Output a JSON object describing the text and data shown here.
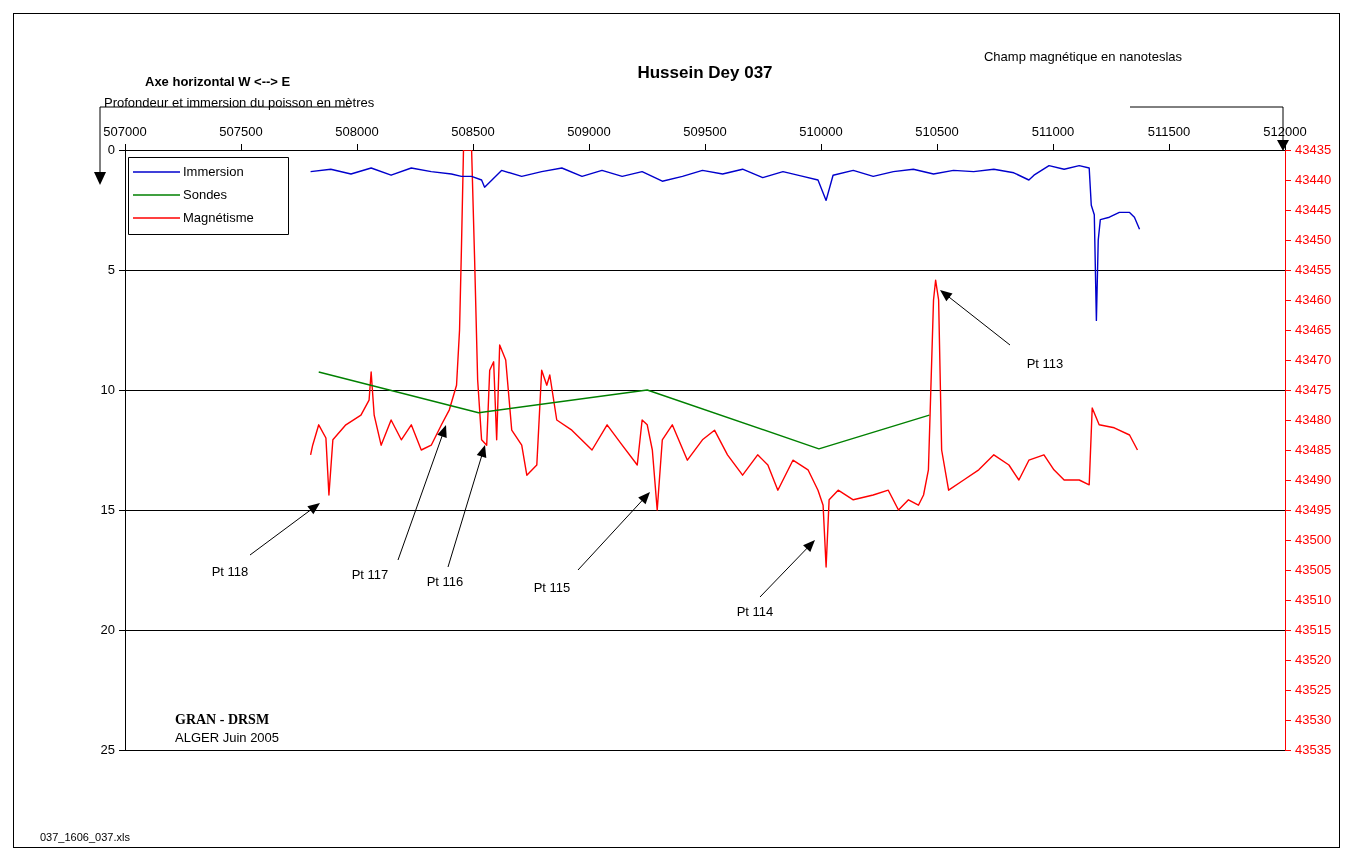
{
  "chart_data": {
    "type": "line",
    "title": "Hussein Dey 037",
    "xlabel": "Axe horizontal W <--> E",
    "ylabel": "Profondeur et immersion du poisson en mètres",
    "y2label": "Champ magnétique en nanoteslas",
    "xlim": [
      507000,
      512000
    ],
    "xticks": [
      507000,
      507500,
      508000,
      508500,
      509000,
      509500,
      510000,
      510500,
      511000,
      511500,
      512000
    ],
    "ylim": [
      25,
      0
    ],
    "yticks": [
      0,
      5,
      10,
      15,
      20,
      25
    ],
    "y2lim": [
      43535,
      43435
    ],
    "y2ticks": [
      43435,
      43440,
      43445,
      43450,
      43455,
      43460,
      43465,
      43470,
      43475,
      43480,
      43485,
      43490,
      43495,
      43500,
      43505,
      43510,
      43515,
      43520,
      43525,
      43530,
      43535
    ],
    "grid": "y",
    "legend": "top left",
    "series": [
      {
        "name": "Immersion",
        "color": "#0000cc",
        "x": [
          507800,
          507887,
          507974,
          508061,
          508147,
          508234,
          508320,
          508407,
          508450,
          508494,
          508537,
          508550,
          508623,
          508710,
          508796,
          508883,
          508970,
          509056,
          509143,
          509229,
          509316,
          509403,
          509489,
          509576,
          509662,
          509749,
          509836,
          509922,
          509987,
          510022,
          510052,
          510139,
          510225,
          510312,
          510398,
          510485,
          510571,
          510658,
          510745,
          510831,
          510896,
          510918,
          510983,
          511048,
          511113,
          511156,
          511165,
          511178,
          511187,
          511195,
          511204,
          511243,
          511286,
          511330,
          511351,
          511373
        ],
        "values": [
          0.9,
          0.8,
          1.0,
          0.75,
          1.05,
          0.75,
          0.9,
          1.0,
          1.1,
          1.1,
          1.25,
          1.55,
          0.85,
          1.1,
          0.9,
          0.75,
          1.1,
          0.85,
          1.1,
          0.9,
          1.3,
          1.1,
          0.85,
          1.0,
          0.8,
          1.15,
          0.9,
          1.1,
          1.25,
          2.1,
          1.05,
          0.85,
          1.1,
          0.9,
          0.8,
          1.0,
          0.85,
          0.9,
          0.8,
          0.95,
          1.25,
          1.05,
          0.65,
          0.8,
          0.65,
          0.75,
          2.3,
          2.7,
          7.1,
          3.75,
          2.9,
          2.8,
          2.6,
          2.6,
          2.8,
          3.3
        ]
      },
      {
        "name": "Sondes",
        "color": "#008000",
        "x": [
          507835,
          508524,
          509251,
          509991,
          510467
        ],
        "values": [
          9.25,
          10.95,
          10.0,
          12.45,
          11.05
        ]
      },
      {
        "name": "Magnétisme",
        "color": "#ff0000",
        "axis": "y2",
        "x": [
          507800,
          507809,
          507835,
          507866,
          507879,
          507896,
          507952,
          508017,
          508052,
          508061,
          508074,
          508104,
          508147,
          508191,
          508234,
          508277,
          508320,
          508364,
          508398,
          508429,
          508442,
          508450,
          508459,
          508494,
          508507,
          508520,
          508537,
          508559,
          508572,
          508589,
          508602,
          508615,
          508641,
          508667,
          508710,
          508732,
          508775,
          508796,
          508818,
          508831,
          508861,
          508926,
          509013,
          509078,
          509143,
          509208,
          509229,
          509251,
          509273,
          509294,
          509316,
          509359,
          509424,
          509489,
          509541,
          509597,
          509662,
          509727,
          509771,
          509814,
          509879,
          509944,
          509987,
          510009,
          510022,
          510035,
          510074,
          510139,
          510225,
          510290,
          510334,
          510377,
          510420,
          510442,
          510463,
          510485,
          510494,
          510507,
          510520,
          510550,
          510615,
          510680,
          510745,
          510810,
          510853,
          510896,
          510961,
          511004,
          511048,
          511113,
          511156,
          511169,
          511199,
          511264,
          511330,
          511364
        ],
        "values": [
          43485.8,
          43484.2,
          43480.8,
          43483,
          43492.5,
          43483.3,
          43480.8,
          43479.2,
          43476.7,
          43472,
          43479.2,
          43484.2,
          43480,
          43483.3,
          43480.8,
          43485,
          43484.2,
          43480.8,
          43478.3,
          43474.2,
          43465,
          43451.7,
          43435,
          43435,
          43453.3,
          43473.3,
          43483.3,
          43484.2,
          43471.7,
          43470.3,
          43483.3,
          43467.5,
          43470,
          43481.7,
          43484.2,
          43489.2,
          43487.5,
          43471.7,
          43474.2,
          43472.5,
          43480,
          43481.7,
          43485,
          43480.8,
          43484.2,
          43487.5,
          43480,
          43480.8,
          43485,
          43495,
          43483.3,
          43480.8,
          43486.7,
          43483.3,
          43481.7,
          43485.8,
          43489.2,
          43485.8,
          43487.5,
          43491.7,
          43486.7,
          43488.3,
          43491.7,
          43494.2,
          43504.5,
          43493.3,
          43491.7,
          43493.3,
          43492.5,
          43491.7,
          43495,
          43493.3,
          43494.2,
          43492.5,
          43488.3,
          43460,
          43456.7,
          43460,
          43485,
          43491.7,
          43490,
          43488.3,
          43485.8,
          43487.5,
          43490,
          43486.7,
          43485.8,
          43488.3,
          43490,
          43490,
          43490.8,
          43478,
          43480.8,
          43481.3,
          43482.5,
          43485
        ]
      }
    ],
    "annotations": [
      "Pt 118",
      "Pt 117",
      "Pt 116",
      "Pt 115",
      "Pt 114",
      "Pt 113",
      "GRAN - DRSM",
      "ALGER Juin 2005",
      "037_1606_037.xls"
    ]
  }
}
